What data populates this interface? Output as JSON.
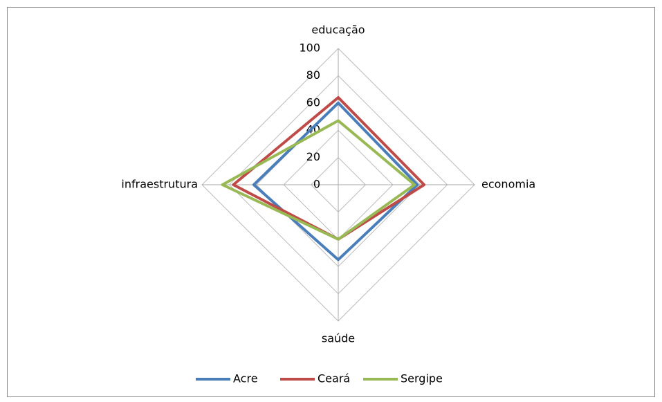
{
  "chart_data": {
    "type": "radar",
    "categories": [
      "educação",
      "economia",
      "saúde",
      "infraestrutura"
    ],
    "series": [
      {
        "name": "Acre",
        "color": "#4a7ebb",
        "values": [
          60,
          58,
          55,
          62
        ]
      },
      {
        "name": "Ceará",
        "color": "#be4b48",
        "values": [
          64,
          63,
          40,
          77
        ]
      },
      {
        "name": "Sergipe",
        "color": "#98b954",
        "values": [
          47,
          56,
          40,
          85
        ]
      }
    ],
    "rlim": [
      0,
      100
    ],
    "rticks": [
      0,
      20,
      40,
      60,
      80,
      100
    ],
    "grid": true,
    "legend": "bottom"
  }
}
